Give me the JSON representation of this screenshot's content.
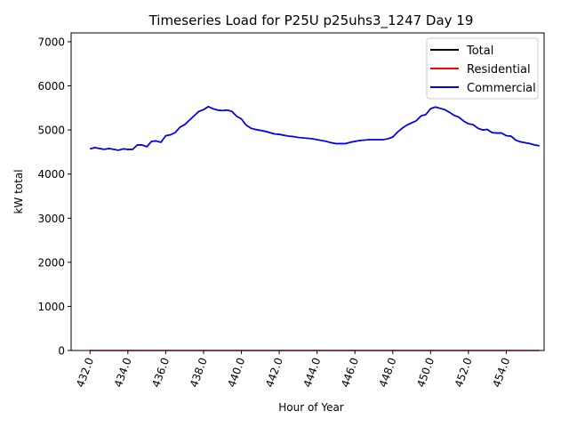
{
  "chart_data": {
    "type": "line",
    "title": "Timeseries Load for P25U p25uhs3_1247  Day 19",
    "xlabel": "Hour of Year",
    "ylabel": "kW total",
    "xlim": [
      431.0,
      456.0
    ],
    "ylim": [
      0,
      7200
    ],
    "x_ticks": [
      432,
      434,
      436,
      438,
      440,
      442,
      444,
      446,
      448,
      450,
      452,
      454
    ],
    "x_tick_labels": [
      "432.0",
      "434.0",
      "436.0",
      "438.0",
      "440.0",
      "442.0",
      "444.0",
      "446.0",
      "448.0",
      "450.0",
      "452.0",
      "454.0"
    ],
    "y_ticks": [
      0,
      1000,
      2000,
      3000,
      4000,
      5000,
      6000,
      7000
    ],
    "y_tick_labels": [
      "0",
      "1000",
      "2000",
      "3000",
      "4000",
      "5000",
      "6000",
      "7000"
    ],
    "legend_position": "top-right",
    "x": [
      432.0,
      432.25,
      432.5,
      432.75,
      433.0,
      433.25,
      433.5,
      433.75,
      434.0,
      434.25,
      434.5,
      434.75,
      435.0,
      435.25,
      435.5,
      435.75,
      436.0,
      436.25,
      436.5,
      436.75,
      437.0,
      437.25,
      437.5,
      437.75,
      438.0,
      438.25,
      438.5,
      438.75,
      439.0,
      439.25,
      439.5,
      439.75,
      440.0,
      440.25,
      440.5,
      440.75,
      441.0,
      441.25,
      441.5,
      441.75,
      442.0,
      442.25,
      442.5,
      442.75,
      443.0,
      443.25,
      443.5,
      443.75,
      444.0,
      444.25,
      444.5,
      444.75,
      445.0,
      445.25,
      445.5,
      445.75,
      446.0,
      446.25,
      446.5,
      446.75,
      447.0,
      447.25,
      447.5,
      447.75,
      448.0,
      448.25,
      448.5,
      448.75,
      449.0,
      449.25,
      449.5,
      449.75,
      450.0,
      450.25,
      450.5,
      450.75,
      451.0,
      451.25,
      451.5,
      451.75,
      452.0,
      452.25,
      452.5,
      452.75,
      453.0,
      453.25,
      453.5,
      453.75,
      454.0,
      454.25,
      454.5,
      454.75,
      455.0,
      455.25,
      455.5,
      455.75
    ],
    "series": [
      {
        "name": "Total",
        "color": "#000000",
        "values": [
          4570,
          4600,
          4580,
          4560,
          4580,
          4560,
          4540,
          4570,
          4560,
          4560,
          4660,
          4660,
          4620,
          4740,
          4750,
          4720,
          4870,
          4890,
          4940,
          5060,
          5120,
          5220,
          5320,
          5420,
          5460,
          5530,
          5480,
          5450,
          5440,
          5450,
          5420,
          5310,
          5250,
          5110,
          5040,
          5010,
          4990,
          4970,
          4940,
          4910,
          4900,
          4880,
          4860,
          4850,
          4830,
          4820,
          4810,
          4800,
          4780,
          4760,
          4740,
          4710,
          4690,
          4690,
          4690,
          4720,
          4740,
          4760,
          4770,
          4780,
          4780,
          4780,
          4780,
          4800,
          4840,
          4950,
          5040,
          5110,
          5160,
          5210,
          5320,
          5350,
          5480,
          5520,
          5490,
          5460,
          5400,
          5330,
          5290,
          5200,
          5140,
          5120,
          5040,
          5000,
          5010,
          4940,
          4930,
          4930,
          4870,
          4860,
          4770,
          4730,
          4710,
          4690,
          4660,
          4640
        ]
      },
      {
        "name": "Residential",
        "color": "#ff0000",
        "values": [
          0,
          0,
          0,
          0,
          0,
          0,
          0,
          0,
          0,
          0,
          0,
          0,
          0,
          0,
          0,
          0,
          0,
          0,
          0,
          0,
          0,
          0,
          0,
          0,
          0,
          0,
          0,
          0,
          0,
          0,
          0,
          0,
          0,
          0,
          0,
          0,
          0,
          0,
          0,
          0,
          0,
          0,
          0,
          0,
          0,
          0,
          0,
          0,
          0,
          0,
          0,
          0,
          0,
          0,
          0,
          0,
          0,
          0,
          0,
          0,
          0,
          0,
          0,
          0,
          0,
          0,
          0,
          0,
          0,
          0,
          0,
          0,
          0,
          0,
          0,
          0,
          0,
          0,
          0,
          0,
          0,
          0,
          0,
          0,
          0,
          0,
          0,
          0,
          0,
          0,
          0,
          0,
          0,
          0,
          0,
          0
        ]
      },
      {
        "name": "Commercial",
        "color": "#0000ff",
        "values": [
          4570,
          4600,
          4580,
          4560,
          4580,
          4560,
          4540,
          4570,
          4560,
          4560,
          4660,
          4660,
          4620,
          4740,
          4750,
          4720,
          4870,
          4890,
          4940,
          5060,
          5120,
          5220,
          5320,
          5420,
          5460,
          5530,
          5480,
          5450,
          5440,
          5450,
          5420,
          5310,
          5250,
          5110,
          5040,
          5010,
          4990,
          4970,
          4940,
          4910,
          4900,
          4880,
          4860,
          4850,
          4830,
          4820,
          4810,
          4800,
          4780,
          4760,
          4740,
          4710,
          4690,
          4690,
          4690,
          4720,
          4740,
          4760,
          4770,
          4780,
          4780,
          4780,
          4780,
          4800,
          4840,
          4950,
          5040,
          5110,
          5160,
          5210,
          5320,
          5350,
          5480,
          5520,
          5490,
          5460,
          5400,
          5330,
          5290,
          5200,
          5140,
          5120,
          5040,
          5000,
          5010,
          4940,
          4930,
          4930,
          4870,
          4860,
          4770,
          4730,
          4710,
          4690,
          4660,
          4640
        ]
      }
    ]
  }
}
